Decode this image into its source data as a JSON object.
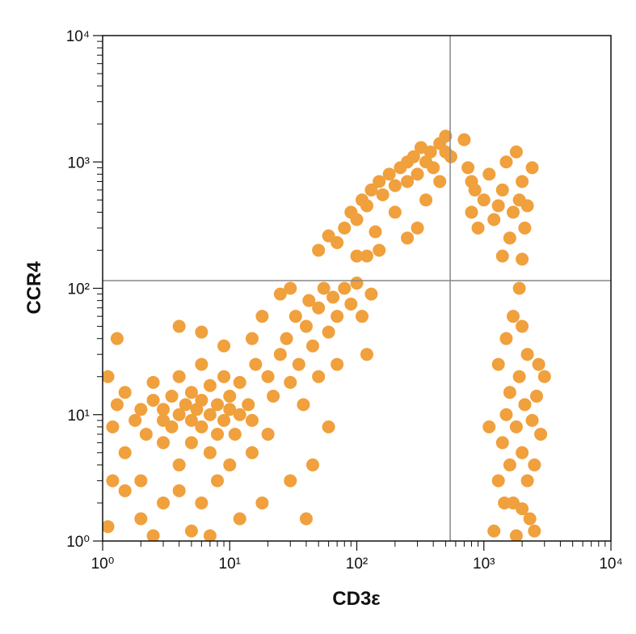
{
  "chart_data": {
    "type": "scatter",
    "x_label": "CD3ε",
    "y_label": "CCR4",
    "xscale": "log",
    "yscale": "log",
    "minor_ticks": true,
    "xlim": [
      1,
      10000
    ],
    "ylim": [
      1,
      10000
    ],
    "xticks": [
      {
        "value": 1,
        "label": "10⁰"
      },
      {
        "value": 10,
        "label": "10¹"
      },
      {
        "value": 100,
        "label": "10²"
      },
      {
        "value": 1000,
        "label": "10³"
      },
      {
        "value": 10000,
        "label": "10⁴"
      }
    ],
    "yticks": [
      {
        "value": 1,
        "label": "10⁰"
      },
      {
        "value": 10,
        "label": "10¹"
      },
      {
        "value": 100,
        "label": "10²"
      },
      {
        "value": 1000,
        "label": "10³"
      },
      {
        "value": 10000,
        "label": "10⁴"
      }
    ],
    "quadrant_x": 543,
    "quadrant_y": 115,
    "color": "#f0a03c",
    "x": [
      1.1,
      1.2,
      1.3,
      1.5,
      1.5,
      1.8,
      2,
      2,
      2.2,
      2.5,
      2.5,
      3,
      3,
      3,
      3.5,
      3.5,
      4,
      4,
      4,
      4.5,
      5,
      5,
      5,
      5.5,
      6,
      6,
      6,
      7,
      7,
      7,
      8,
      8,
      9,
      9,
      10,
      10,
      11,
      12,
      12,
      14,
      15,
      16,
      1.1,
      1.5,
      2,
      3,
      1.2,
      4,
      6,
      5,
      8,
      10,
      12,
      15,
      18,
      20,
      7,
      2.5,
      1.3,
      4,
      6,
      9,
      20,
      22,
      25,
      28,
      30,
      33,
      35,
      40,
      42,
      45,
      50,
      55,
      60,
      65,
      70,
      80,
      90,
      100,
      110,
      25,
      15,
      18,
      30,
      50,
      38,
      60,
      120,
      70,
      130,
      45,
      30,
      40,
      50,
      60,
      70,
      80,
      90,
      100,
      110,
      120,
      130,
      140,
      150,
      160,
      180,
      200,
      200,
      220,
      250,
      250,
      280,
      300,
      320,
      350,
      380,
      400,
      450,
      500,
      500,
      450,
      350,
      300,
      150,
      250,
      100,
      120,
      550,
      700,
      750,
      800,
      850,
      900,
      1000,
      1100,
      1200,
      1300,
      1400,
      1500,
      1600,
      1700,
      1800,
      1900,
      2000,
      2100,
      2200,
      2400,
      1400,
      2000,
      800,
      1200,
      1300,
      1400,
      1500,
      1600,
      1700,
      1800,
      1900,
      2000,
      2100,
      2200,
      2300,
      2400,
      2500,
      2600,
      2800,
      3000,
      1500,
      1700,
      1900,
      2000,
      1300,
      1100,
      2200,
      1800,
      1600,
      2000,
      2500,
      1450,
      2700
    ],
    "values": [
      20,
      8,
      12,
      5,
      15,
      9,
      11,
      3,
      7,
      13,
      18,
      9,
      6,
      11,
      14,
      8,
      10,
      4,
      20,
      12,
      9,
      6,
      15,
      11,
      8,
      13,
      25,
      10,
      5,
      17,
      12,
      7,
      9,
      20,
      11,
      14,
      7,
      10,
      18,
      12,
      9,
      25,
      1.3,
      2.5,
      1.5,
      2,
      3,
      2.5,
      2,
      1.2,
      3,
      4,
      1.5,
      5,
      2,
      7,
      1.1,
      1.1,
      40,
      50,
      45,
      35,
      20,
      14,
      30,
      40,
      18,
      60,
      25,
      50,
      80,
      35,
      70,
      100,
      45,
      85,
      60,
      100,
      75,
      110,
      60,
      90,
      40,
      60,
      100,
      20,
      12,
      8,
      30,
      25,
      90,
      4,
      3,
      1.5,
      200,
      260,
      230,
      300,
      400,
      350,
      500,
      450,
      600,
      280,
      700,
      550,
      800,
      650,
      400,
      900,
      1000,
      700,
      1100,
      800,
      1300,
      1000,
      1200,
      900,
      1400,
      1200,
      1600,
      700,
      500,
      300,
      200,
      250,
      180,
      180,
      1100,
      1500,
      900,
      400,
      600,
      300,
      500,
      800,
      350,
      450,
      600,
      1000,
      250,
      400,
      1200,
      500,
      700,
      300,
      450,
      900,
      180,
      170,
      700,
      1.2,
      3,
      6,
      10,
      15,
      2,
      8,
      20,
      5,
      12,
      30,
      1.5,
      9,
      4,
      14,
      7,
      20,
      40,
      60,
      100,
      50,
      25,
      8,
      3,
      1.1,
      4,
      1.8,
      1.2,
      2,
      25
    ]
  }
}
